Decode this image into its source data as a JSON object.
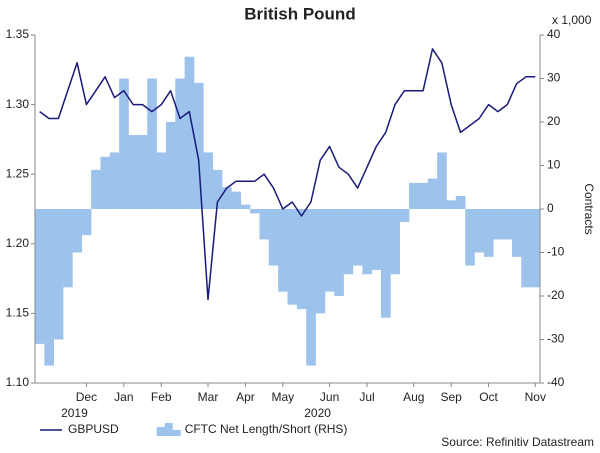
{
  "chart_data": {
    "type": "combo",
    "title": "British Pound",
    "y2_unit_label": "x 1,000",
    "y2_label": "Contracts",
    "source": "Source: Refinitiv Datastream",
    "categories": [
      null,
      null,
      null,
      null,
      null,
      "Dec",
      null,
      null,
      null,
      "Jan",
      null,
      null,
      null,
      "Feb",
      null,
      null,
      null,
      null,
      "Mar",
      null,
      null,
      null,
      "Apr",
      null,
      null,
      null,
      "May",
      null,
      null,
      null,
      null,
      "Jun",
      null,
      null,
      null,
      "Jul",
      null,
      null,
      null,
      null,
      "Aug",
      null,
      null,
      null,
      "Sep",
      null,
      null,
      null,
      "Oct",
      null,
      null,
      null,
      null,
      "Nov"
    ],
    "year_labels": [
      "2019",
      "2020"
    ],
    "series": [
      {
        "name": "CFTC Net Length/Short (RHS)",
        "type": "area",
        "axis": "y2",
        "color": "#9dc3ec",
        "values": [
          -31,
          -36,
          -30,
          -18,
          -10,
          -6,
          9,
          12,
          13,
          30,
          17,
          17,
          30,
          13,
          20,
          30,
          35,
          29,
          13,
          9,
          5,
          4,
          1,
          -1,
          -7,
          -13,
          -19,
          -22,
          -23,
          -36,
          -24,
          -19,
          -20,
          -15,
          -13,
          -15,
          -14,
          -25,
          -15,
          -3,
          6,
          6,
          7,
          13,
          2,
          3,
          -13,
          -10,
          -11,
          -7,
          -7,
          -11,
          -18,
          -18
        ]
      },
      {
        "name": "GBPUSD",
        "type": "line",
        "color": "#1a1a7a",
        "values": [
          1.295,
          1.29,
          1.29,
          1.31,
          1.33,
          1.3,
          1.31,
          1.32,
          1.305,
          1.31,
          1.3,
          1.3,
          1.295,
          1.3,
          1.31,
          1.29,
          1.295,
          1.26,
          1.16,
          1.23,
          1.24,
          1.245,
          1.245,
          1.245,
          1.25,
          1.24,
          1.225,
          1.23,
          1.22,
          1.23,
          1.26,
          1.27,
          1.255,
          1.25,
          1.24,
          1.255,
          1.27,
          1.28,
          1.3,
          1.31,
          1.31,
          1.31,
          1.34,
          1.33,
          1.3,
          1.28,
          1.285,
          1.29,
          1.3,
          1.295,
          1.3,
          1.315,
          1.32,
          1.32
        ]
      }
    ],
    "ylim": [
      1.1,
      1.35
    ],
    "yticks": [
      {
        "value": 1.1,
        "label": "1.10"
      },
      1.15,
      {
        "value": 1.2,
        "label": "1.20"
      },
      1.25,
      {
        "value": 1.3,
        "label": "1.30"
      },
      1.35
    ],
    "y2lim": [
      -40,
      40
    ],
    "y2ticks": [
      40,
      30,
      20,
      10,
      0,
      -10,
      -20,
      -30,
      -40
    ]
  }
}
